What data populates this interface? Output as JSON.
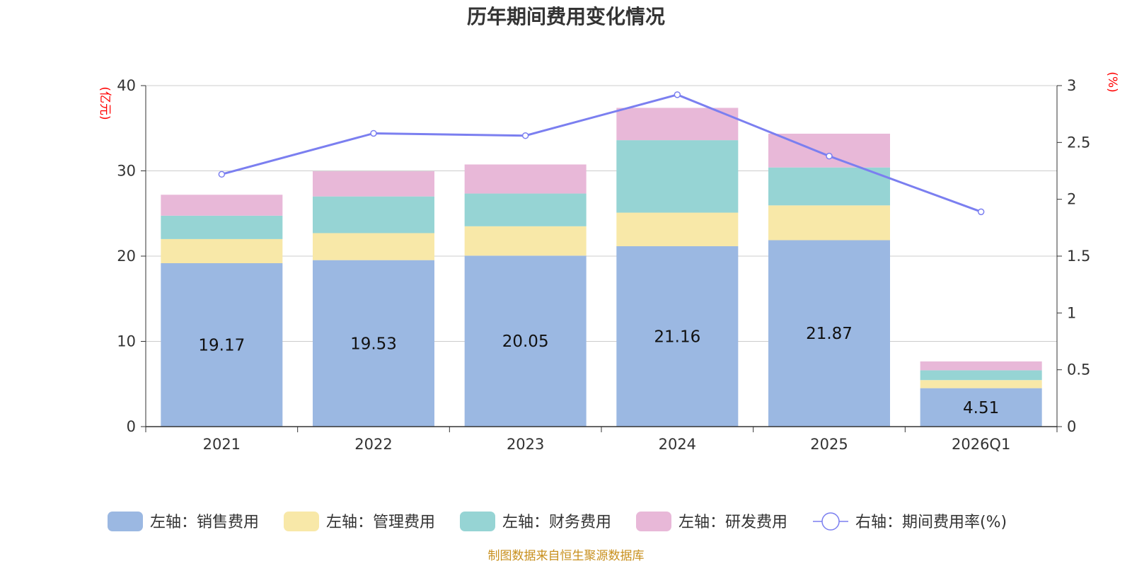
{
  "chart_data": {
    "type": "bar",
    "stacked": true,
    "title": "历年期间费用变化情况",
    "categories": [
      "2021",
      "2022",
      "2023",
      "2024",
      "2025",
      "2026Q1"
    ],
    "y_left": {
      "unit": "(亿元)",
      "ylim": [
        0,
        40
      ],
      "ticks": [
        0,
        10,
        20,
        30,
        40
      ]
    },
    "y_right": {
      "unit": "(%)",
      "ylim": [
        0,
        3
      ],
      "ticks": [
        "0",
        "0.5",
        "1",
        "1.5",
        "2",
        "2.5",
        "3"
      ]
    },
    "grid": true,
    "legend_position": "bottom",
    "series": [
      {
        "name": "左轴：销售费用",
        "axis": "left",
        "type": "bar",
        "color": "#9bb8e2",
        "values": [
          19.17,
          19.53,
          20.05,
          21.16,
          21.87,
          4.51
        ],
        "labels": [
          "19.17",
          "19.53",
          "20.05",
          "21.16",
          "21.87",
          "4.51"
        ]
      },
      {
        "name": "左轴：管理费用",
        "axis": "left",
        "type": "bar",
        "color": "#f8e8a8",
        "values": [
          2.83,
          3.17,
          3.45,
          3.94,
          4.08,
          0.95
        ]
      },
      {
        "name": "左轴：财务费用",
        "axis": "left",
        "type": "bar",
        "color": "#96d4d4",
        "values": [
          2.74,
          4.3,
          3.84,
          8.5,
          4.45,
          1.15
        ]
      },
      {
        "name": "左轴：研发费用",
        "axis": "left",
        "type": "bar",
        "color": "#e8b8d8",
        "values": [
          2.46,
          2.95,
          3.41,
          3.79,
          3.96,
          1.04
        ]
      },
      {
        "name": "右轴：期间费用率(%)",
        "axis": "right",
        "type": "line",
        "color": "#7b7ff0",
        "values": [
          2.22,
          2.58,
          2.56,
          2.92,
          2.38,
          1.89
        ]
      }
    ],
    "source": "制图数据来自恒生聚源数据库"
  }
}
